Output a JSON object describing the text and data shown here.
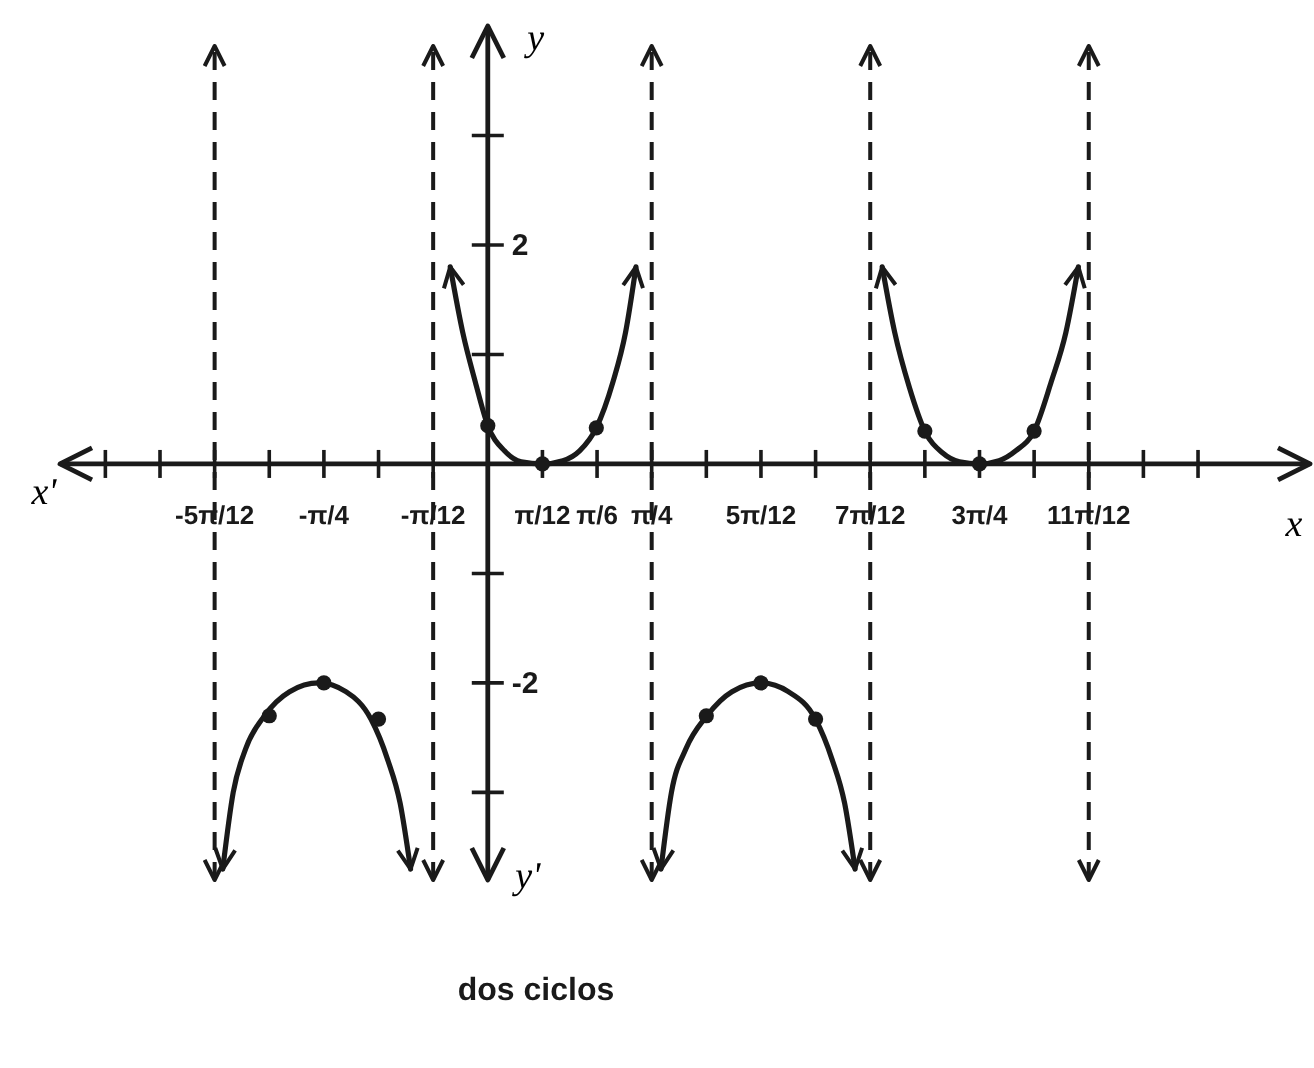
{
  "chart_data": {
    "type": "line",
    "xlabel": "x",
    "ylabel": "y",
    "annotations": [
      "x'",
      "y'",
      "dos ciclos"
    ],
    "xlim": [
      -2.05,
      3.94
    ],
    "ylim": [
      -3.8,
      4.0
    ],
    "xticks": [
      {
        "value": -1.8326,
        "label": null
      },
      {
        "value": -1.5708,
        "label": null
      },
      {
        "value": -1.309,
        "label": "-5π/12"
      },
      {
        "value": -1.0472,
        "label": null
      },
      {
        "value": -0.7854,
        "label": "-π/4"
      },
      {
        "value": -0.5236,
        "label": null
      },
      {
        "value": -0.2618,
        "label": "-π/12"
      },
      {
        "value": 0.2618,
        "label": "π/12"
      },
      {
        "value": 0.5236,
        "label": "π/6"
      },
      {
        "value": 0.7854,
        "label": "π/4"
      },
      {
        "value": 1.0472,
        "label": null
      },
      {
        "value": 1.309,
        "label": "5π/12"
      },
      {
        "value": 1.5708,
        "label": null
      },
      {
        "value": 1.8326,
        "label": "7π/12"
      },
      {
        "value": 2.0944,
        "label": null
      },
      {
        "value": 2.3562,
        "label": "3π/4"
      },
      {
        "value": 2.618,
        "label": null
      },
      {
        "value": 2.8798,
        "label": "11π/12"
      },
      {
        "value": 3.1416,
        "label": null
      },
      {
        "value": 3.4034,
        "label": null
      }
    ],
    "yticks": [
      {
        "value": 3,
        "label": null
      },
      2,
      {
        "value": 1,
        "label": null
      },
      {
        "value": -1,
        "label": null
      },
      -2,
      {
        "value": -3,
        "label": null
      }
    ],
    "ref_lines": [
      {
        "axis": "x",
        "value": -1.309,
        "color": "#1a1a1a",
        "line_style": "dashed"
      },
      {
        "axis": "x",
        "value": -0.2618,
        "color": "#1a1a1a",
        "line_style": "dashed"
      },
      {
        "axis": "x",
        "value": 0.7854,
        "color": "#1a1a1a",
        "line_style": "dashed"
      },
      {
        "axis": "x",
        "value": 1.8326,
        "color": "#1a1a1a",
        "line_style": "dashed"
      },
      {
        "axis": "x",
        "value": 2.8798,
        "color": "#1a1a1a",
        "line_style": "dashed"
      }
    ],
    "series": [
      {
        "color": "#1a1a1a",
        "x": [
          -0.18,
          -0.12,
          -0.06,
          0,
          0.08,
          0.16,
          0.2618,
          0.36,
          0.44,
          0.52,
          0.6,
          0.66,
          0.71
        ],
        "values": [
          1.8,
          1.2,
          0.75,
          0.35,
          0.12,
          0.02,
          0,
          0.03,
          0.12,
          0.33,
          0.75,
          1.2,
          1.8
        ]
      },
      {
        "color": "#1a1a1a",
        "x": [
          1.89,
          1.95,
          2.02,
          2.0944,
          2.18,
          2.26,
          2.3562,
          2.45,
          2.53,
          2.618,
          2.7,
          2.77,
          2.83
        ],
        "values": [
          1.8,
          1.2,
          0.7,
          0.3,
          0.1,
          0.02,
          0,
          0.03,
          0.12,
          0.3,
          0.75,
          1.2,
          1.8
        ]
      },
      {
        "color": "#1a1a1a",
        "x": [
          -1.27,
          -1.22,
          -1.16,
          -1.07,
          -0.95,
          -0.81,
          -0.68,
          -0.56,
          -0.48,
          -0.42,
          -0.37
        ],
        "values": [
          -3.7,
          -3.0,
          -2.6,
          -2.3,
          -2.08,
          -2.0,
          -2.08,
          -2.33,
          -2.7,
          -3.1,
          -3.7
        ]
      },
      {
        "color": "#1a1a1a",
        "x": [
          0.83,
          0.88,
          0.95,
          1.05,
          1.17,
          1.31,
          1.44,
          1.57,
          1.65,
          1.71,
          1.76
        ],
        "values": [
          -3.7,
          -3.0,
          -2.6,
          -2.3,
          -2.08,
          -2.0,
          -2.08,
          -2.33,
          -2.7,
          -3.1,
          -3.7
        ]
      },
      {
        "type": "scatter",
        "marker": "circle",
        "color": "#1a1a1a",
        "x": [
          0,
          0.2618,
          0.52,
          2.0944,
          2.3562,
          2.618,
          -1.0472,
          -0.7854,
          -0.5236,
          1.0472,
          1.309,
          1.5708
        ],
        "values": [
          0.35,
          0,
          0.33,
          0.3,
          0,
          0.3,
          -2.3,
          -2.0,
          -2.33,
          -2.3,
          -2.0,
          -2.33
        ]
      }
    ]
  }
}
